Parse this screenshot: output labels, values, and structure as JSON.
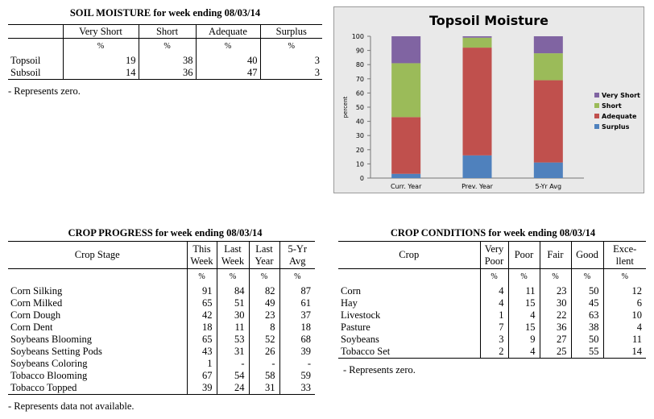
{
  "soil_moisture": {
    "title": "SOIL MOISTURE for week ending 08/03/14",
    "headers": [
      "Very Short",
      "Short",
      "Adequate",
      "Surplus"
    ],
    "pct": [
      "%",
      "%",
      "%",
      "%"
    ],
    "rows": [
      {
        "label": "Topsoil",
        "values": [
          "19",
          "38",
          "40",
          "3"
        ]
      },
      {
        "label": "Subsoil",
        "values": [
          "14",
          "36",
          "47",
          "3"
        ]
      }
    ],
    "note": "- Represents zero."
  },
  "chart_data": {
    "type": "bar",
    "stacked": true,
    "title": "Topsoil Moisture",
    "ylabel": "percent",
    "ylim": [
      0,
      100
    ],
    "yticks": [
      "0",
      "10",
      "20",
      "30",
      "40",
      "50",
      "60",
      "70",
      "80",
      "90",
      "100"
    ],
    "categories": [
      "Curr. Year",
      "Prev. Year",
      "5-Yr Avg"
    ],
    "series": [
      {
        "name": "Surplus",
        "color": "#4f81bd",
        "values": [
          3,
          16,
          11
        ]
      },
      {
        "name": "Adequate",
        "color": "#c0504d",
        "values": [
          40,
          76,
          58
        ]
      },
      {
        "name": "Short",
        "color": "#9bbb59",
        "values": [
          38,
          7,
          19
        ]
      },
      {
        "name": "Very Short",
        "color": "#8064a2",
        "values": [
          19,
          1,
          12
        ]
      }
    ],
    "legend_order": [
      "Very Short",
      "Short",
      "Adequate",
      "Surplus"
    ],
    "legend_position": "right",
    "grid": false
  },
  "crop_progress": {
    "title": "CROP PROGRESS for week ending 08/03/14",
    "stage_header": "Crop Stage",
    "headers": [
      [
        "This",
        "Week"
      ],
      [
        "Last",
        "Week"
      ],
      [
        "Last",
        "Year"
      ],
      [
        "5-Yr",
        "Avg"
      ]
    ],
    "pct": [
      "%",
      "%",
      "%",
      "%"
    ],
    "rows": [
      {
        "label": "Corn Silking",
        "values": [
          "91",
          "84",
          "82",
          "87"
        ]
      },
      {
        "label": "Corn Milked",
        "values": [
          "65",
          "51",
          "49",
          "61"
        ]
      },
      {
        "label": "Corn Dough",
        "values": [
          "42",
          "30",
          "23",
          "37"
        ]
      },
      {
        "label": "Corn Dent",
        "values": [
          "18",
          "11",
          "8",
          "18"
        ]
      },
      {
        "label": "Soybeans Blooming",
        "values": [
          "65",
          "53",
          "52",
          "68"
        ]
      },
      {
        "label": "Soybeans Setting Pods",
        "values": [
          "43",
          "31",
          "26",
          "39"
        ]
      },
      {
        "label": "Soybeans Coloring",
        "values": [
          "1",
          "-",
          "-",
          "-"
        ]
      },
      {
        "label": "Tobacco Blooming",
        "values": [
          "67",
          "54",
          "58",
          "59"
        ]
      },
      {
        "label": "Tobacco Topped",
        "values": [
          "39",
          "24",
          "31",
          "33"
        ]
      }
    ],
    "note": "- Represents data not available."
  },
  "crop_conditions": {
    "title": "CROP CONDITIONS for week ending 08/03/14",
    "crop_header": "Crop",
    "headers": [
      [
        "Very",
        "Poor"
      ],
      [
        "Poor"
      ],
      [
        "Fair"
      ],
      [
        "Good"
      ],
      [
        "Exce-",
        "llent"
      ]
    ],
    "pct": [
      "%",
      "%",
      "%",
      "%",
      "%"
    ],
    "rows": [
      {
        "label": "Corn",
        "values": [
          "4",
          "11",
          "23",
          "50",
          "12"
        ]
      },
      {
        "label": "Hay",
        "values": [
          "4",
          "15",
          "30",
          "45",
          "6"
        ]
      },
      {
        "label": "Livestock",
        "values": [
          "1",
          "4",
          "22",
          "63",
          "10"
        ]
      },
      {
        "label": "Pasture",
        "values": [
          "7",
          "15",
          "36",
          "38",
          "4"
        ]
      },
      {
        "label": "Soybeans",
        "values": [
          "3",
          "9",
          "27",
          "50",
          "11"
        ]
      },
      {
        "label": "Tobacco Set",
        "values": [
          "2",
          "4",
          "25",
          "55",
          "14"
        ]
      }
    ],
    "note": "- Represents zero."
  }
}
